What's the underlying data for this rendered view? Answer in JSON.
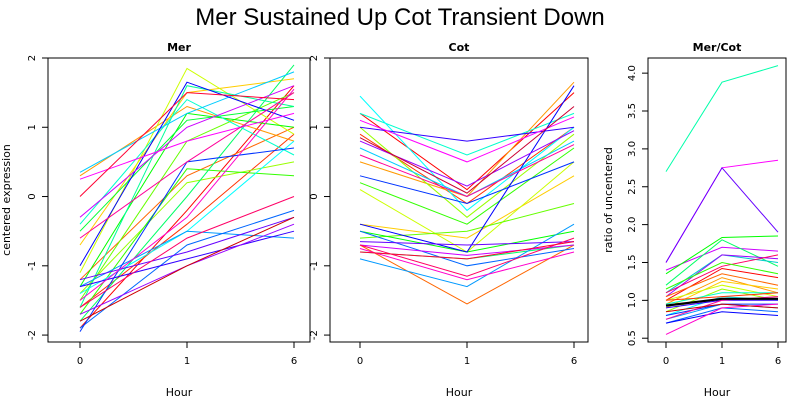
{
  "title": "Mer Sustained Up Cot Transient Down",
  "chart_data": [
    {
      "type": "line",
      "title": "Mer",
      "xlabel": "Hour",
      "ylabel": "centered expression",
      "categories": [
        "0",
        "1",
        "6"
      ],
      "ylim": [
        -2.1,
        2.0
      ],
      "yticks": [
        "-2",
        "-1",
        "0",
        "1",
        "2"
      ],
      "series": [
        {
          "color": "#ff0000",
          "values": [
            -1.9,
            -0.2,
            1.6
          ]
        },
        {
          "color": "#ff3300",
          "values": [
            -1.6,
            -0.4,
            0.9
          ]
        },
        {
          "color": "#ff6600",
          "values": [
            -1.2,
            0.3,
            1.0
          ]
        },
        {
          "color": "#ff9900",
          "values": [
            0.3,
            1.3,
            0.8
          ]
        },
        {
          "color": "#ffcc00",
          "values": [
            -0.7,
            1.5,
            1.7
          ]
        },
        {
          "color": "#ccff00",
          "values": [
            -1.1,
            1.85,
            0.9
          ]
        },
        {
          "color": "#99ff00",
          "values": [
            -1.4,
            0.2,
            0.5
          ]
        },
        {
          "color": "#66ff00",
          "values": [
            -1.5,
            0.8,
            1.5
          ]
        },
        {
          "color": "#33ff00",
          "values": [
            -1.7,
            0.4,
            0.3
          ]
        },
        {
          "color": "#00ff00",
          "values": [
            -1.3,
            1.2,
            1.0
          ]
        },
        {
          "color": "#00ff33",
          "values": [
            -0.5,
            1.1,
            1.3
          ]
        },
        {
          "color": "#00ff66",
          "values": [
            -1.8,
            0.0,
            1.9
          ]
        },
        {
          "color": "#00ff99",
          "values": [
            -1.6,
            1.6,
            1.3
          ]
        },
        {
          "color": "#00ffcc",
          "values": [
            -0.4,
            1.4,
            0.6
          ]
        },
        {
          "color": "#00ffff",
          "values": [
            -1.4,
            -0.5,
            0.8
          ]
        },
        {
          "color": "#00ccff",
          "values": [
            0.35,
            1.2,
            1.8
          ]
        },
        {
          "color": "#0099ff",
          "values": [
            -1.3,
            -0.5,
            -0.6
          ]
        },
        {
          "color": "#0066ff",
          "values": [
            -1.9,
            -0.7,
            -0.2
          ]
        },
        {
          "color": "#0033ff",
          "values": [
            -1.95,
            0.5,
            0.7
          ]
        },
        {
          "color": "#0000ff",
          "values": [
            -1.0,
            1.65,
            1.1
          ]
        },
        {
          "color": "#3300ff",
          "values": [
            -1.3,
            -0.9,
            -0.5
          ]
        },
        {
          "color": "#6600ff",
          "values": [
            -1.2,
            -0.8,
            -0.3
          ]
        },
        {
          "color": "#9900ff",
          "values": [
            -1.7,
            -1.0,
            -0.4
          ]
        },
        {
          "color": "#cc00ff",
          "values": [
            -0.3,
            1.0,
            1.6
          ]
        },
        {
          "color": "#ff00ff",
          "values": [
            0.25,
            0.8,
            1.2
          ]
        },
        {
          "color": "#ff00cc",
          "values": [
            -1.5,
            -0.3,
            1.55
          ]
        },
        {
          "color": "#ff0099",
          "values": [
            -0.6,
            0.5,
            1.5
          ]
        },
        {
          "color": "#ff0066",
          "values": [
            -1.6,
            -0.6,
            0.0
          ]
        },
        {
          "color": "#ff0033",
          "values": [
            0.0,
            1.5,
            1.4
          ]
        },
        {
          "color": "#cc0000",
          "values": [
            -1.8,
            -1.0,
            -0.3
          ]
        }
      ]
    },
    {
      "type": "line",
      "title": "Cot",
      "xlabel": "Hour",
      "ylabel": "",
      "categories": [
        "0",
        "1",
        "6"
      ],
      "ylim": [
        -2.1,
        2.0
      ],
      "yticks": [
        "-2",
        "-1",
        "0",
        "1",
        "2"
      ],
      "series": [
        {
          "color": "#ff0000",
          "values": [
            1.2,
            0.1,
            1.5
          ]
        },
        {
          "color": "#ff3300",
          "values": [
            0.9,
            -0.1,
            1.0
          ]
        },
        {
          "color": "#ff6600",
          "values": [
            -0.7,
            -1.55,
            -0.7
          ]
        },
        {
          "color": "#ff9900",
          "values": [
            0.5,
            0.0,
            1.65
          ]
        },
        {
          "color": "#ffcc00",
          "values": [
            -0.4,
            -0.6,
            0.3
          ]
        },
        {
          "color": "#ccff00",
          "values": [
            0.1,
            -0.8,
            0.5
          ]
        },
        {
          "color": "#99ff00",
          "values": [
            1.0,
            -0.3,
            0.9
          ]
        },
        {
          "color": "#66ff00",
          "values": [
            -0.6,
            -0.5,
            -0.1
          ]
        },
        {
          "color": "#33ff00",
          "values": [
            0.2,
            -0.4,
            0.7
          ]
        },
        {
          "color": "#00ff00",
          "values": [
            -0.5,
            -0.8,
            -0.5
          ]
        },
        {
          "color": "#00ff66",
          "values": [
            -0.8,
            -0.9,
            -0.7
          ]
        },
        {
          "color": "#00ffcc",
          "values": [
            1.2,
            0.6,
            1.2
          ]
        },
        {
          "color": "#00ffff",
          "values": [
            1.45,
            -0.2,
            1.0
          ]
        },
        {
          "color": "#00ccff",
          "values": [
            0.7,
            0.0,
            0.8
          ]
        },
        {
          "color": "#0099ff",
          "values": [
            -0.9,
            -1.3,
            -0.4
          ]
        },
        {
          "color": "#0066ff",
          "values": [
            -0.5,
            -1.0,
            -0.75
          ]
        },
        {
          "color": "#0033ff",
          "values": [
            0.3,
            -0.1,
            0.5
          ]
        },
        {
          "color": "#0000ff",
          "values": [
            -0.4,
            -0.8,
            1.6
          ]
        },
        {
          "color": "#3300ff",
          "values": [
            1.0,
            0.8,
            1.0
          ]
        },
        {
          "color": "#6600ff",
          "values": [
            -0.65,
            -0.7,
            -0.65
          ]
        },
        {
          "color": "#9900ff",
          "values": [
            0.8,
            0.15,
            0.95
          ]
        },
        {
          "color": "#cc00ff",
          "values": [
            -0.7,
            -0.85,
            -0.7
          ]
        },
        {
          "color": "#ff00ff",
          "values": [
            1.1,
            0.5,
            1.15
          ]
        },
        {
          "color": "#ff00cc",
          "values": [
            -0.75,
            -1.2,
            -0.8
          ]
        },
        {
          "color": "#ff0099",
          "values": [
            0.6,
            0.0,
            0.75
          ]
        },
        {
          "color": "#ff0066",
          "values": [
            -0.7,
            -1.15,
            -0.6
          ]
        },
        {
          "color": "#ff0033",
          "values": [
            -0.8,
            -0.9,
            -0.65
          ]
        },
        {
          "color": "#cc0033",
          "values": [
            0.85,
            0.05,
            1.3
          ]
        }
      ]
    },
    {
      "type": "line",
      "title": "Mer/Cot",
      "xlabel": "Hour",
      "ylabel": "ratio of uncentered",
      "categories": [
        "0",
        "1",
        "6"
      ],
      "ylim": [
        0.45,
        4.2
      ],
      "yticks": [
        "0.5",
        "1.0",
        "1.5",
        "2.0",
        "2.5",
        "3.0",
        "3.5",
        "4.0"
      ],
      "series": [
        {
          "color": "#00ffaa",
          "values": [
            2.7,
            3.88,
            4.1
          ]
        },
        {
          "color": "#ff00ff",
          "values": [
            1.5,
            2.75,
            2.85
          ]
        },
        {
          "color": "#6600ff",
          "values": [
            1.5,
            2.75,
            1.9
          ]
        },
        {
          "color": "#cc00ff",
          "values": [
            1.4,
            1.7,
            1.65
          ]
        },
        {
          "color": "#00ff00",
          "values": [
            1.35,
            1.83,
            1.85
          ]
        },
        {
          "color": "#00ff66",
          "values": [
            1.2,
            1.8,
            1.45
          ]
        },
        {
          "color": "#00cccc",
          "values": [
            1.1,
            1.6,
            1.5
          ]
        },
        {
          "color": "#9900ff",
          "values": [
            1.05,
            1.6,
            1.55
          ]
        },
        {
          "color": "#ff0066",
          "values": [
            1.1,
            1.45,
            1.6
          ]
        },
        {
          "color": "#ff0000",
          "values": [
            1.0,
            1.42,
            1.3
          ]
        },
        {
          "color": "#ff6600",
          "values": [
            1.05,
            1.35,
            1.2
          ]
        },
        {
          "color": "#ff9900",
          "values": [
            0.95,
            1.3,
            1.1
          ]
        },
        {
          "color": "#ffcc00",
          "values": [
            0.9,
            1.25,
            1.15
          ]
        },
        {
          "color": "#ccff00",
          "values": [
            1.0,
            1.2,
            1.05
          ]
        },
        {
          "color": "#99ff00",
          "values": [
            0.85,
            1.15,
            1.0
          ]
        },
        {
          "color": "#33ff00",
          "values": [
            1.15,
            1.5,
            1.35
          ]
        },
        {
          "color": "#00ffcc",
          "values": [
            0.95,
            1.1,
            1.1
          ]
        },
        {
          "color": "#00ffff",
          "values": [
            0.8,
            1.05,
            1.0
          ]
        },
        {
          "color": "#0099ff",
          "values": [
            0.75,
            0.95,
            0.9
          ]
        },
        {
          "color": "#0066ff",
          "values": [
            0.7,
            0.9,
            0.85
          ]
        },
        {
          "color": "#0033ff",
          "values": [
            0.8,
            0.95,
            0.95
          ]
        },
        {
          "color": "#0000ff",
          "values": [
            0.7,
            0.85,
            0.8
          ]
        },
        {
          "color": "#3300ff",
          "values": [
            0.9,
            1.0,
            1.0
          ]
        },
        {
          "color": "#ff00cc",
          "values": [
            0.55,
            0.9,
            0.95
          ]
        },
        {
          "color": "#ff0099",
          "values": [
            0.75,
            1.0,
            1.05
          ]
        },
        {
          "color": "#cc0000",
          "values": [
            0.85,
            0.95,
            0.9
          ]
        },
        {
          "color": "#ff3300",
          "values": [
            1.0,
            1.05,
            1.1
          ]
        },
        {
          "color": "#000000",
          "values": [
            0.93,
            1.02,
            1.02
          ]
        }
      ]
    }
  ]
}
